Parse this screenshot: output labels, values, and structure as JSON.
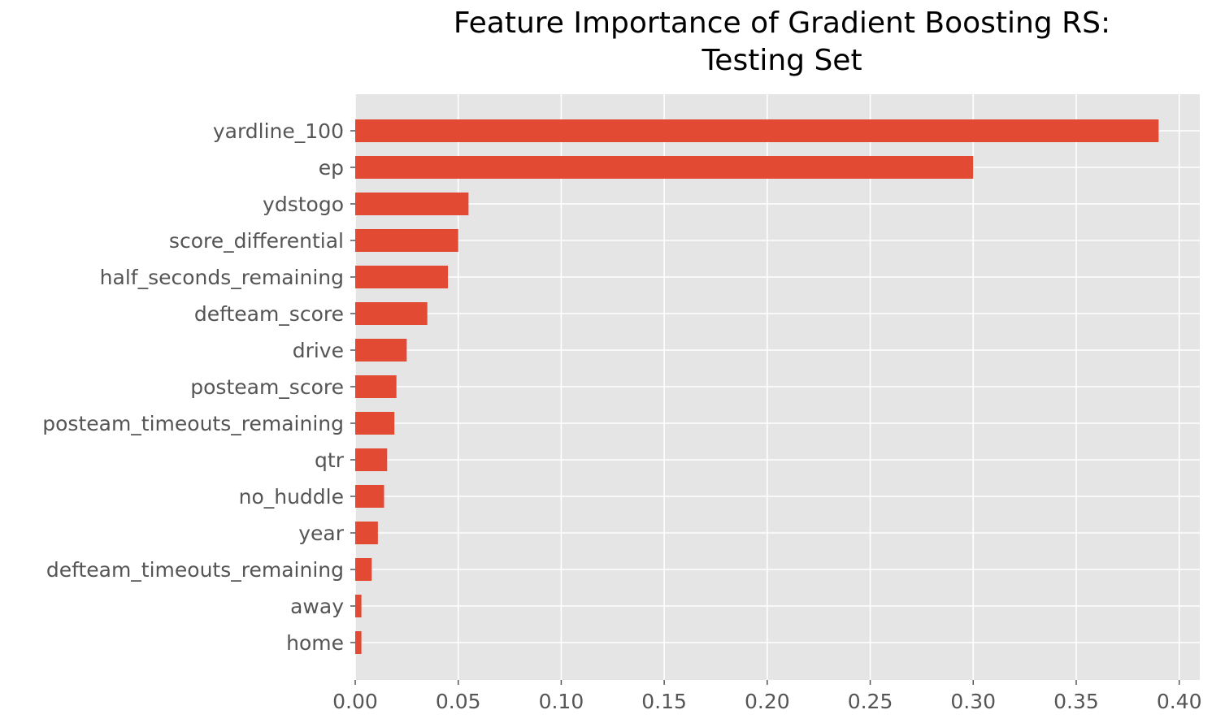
{
  "chart_data": {
    "type": "bar",
    "orientation": "horizontal",
    "title_line1": "Feature Importance of Gradient Boosting RS:",
    "title_line2": "Testing Set",
    "xlabel": "",
    "ylabel": "",
    "xlim": [
      0,
      0.41
    ],
    "grid": true,
    "bar_color": "#E24A33",
    "plot_background": "#E5E5E5",
    "categories": [
      "yardline_100",
      "ep",
      "ydstogo",
      "score_differential",
      "half_seconds_remaining",
      "defteam_score",
      "drive",
      "posteam_score",
      "posteam_timeouts_remaining",
      "qtr",
      "no_huddle",
      "year",
      "defteam_timeouts_remaining",
      "away",
      "home"
    ],
    "values": [
      0.39,
      0.3,
      0.055,
      0.05,
      0.045,
      0.035,
      0.025,
      0.02,
      0.019,
      0.0155,
      0.014,
      0.011,
      0.008,
      0.003,
      0.003
    ],
    "x_ticks": [
      "0.00",
      "0.05",
      "0.10",
      "0.15",
      "0.20",
      "0.25",
      "0.30",
      "0.35",
      "0.40"
    ],
    "x_tick_values": [
      0,
      0.05,
      0.1,
      0.15,
      0.2,
      0.25,
      0.3,
      0.35,
      0.4
    ]
  }
}
